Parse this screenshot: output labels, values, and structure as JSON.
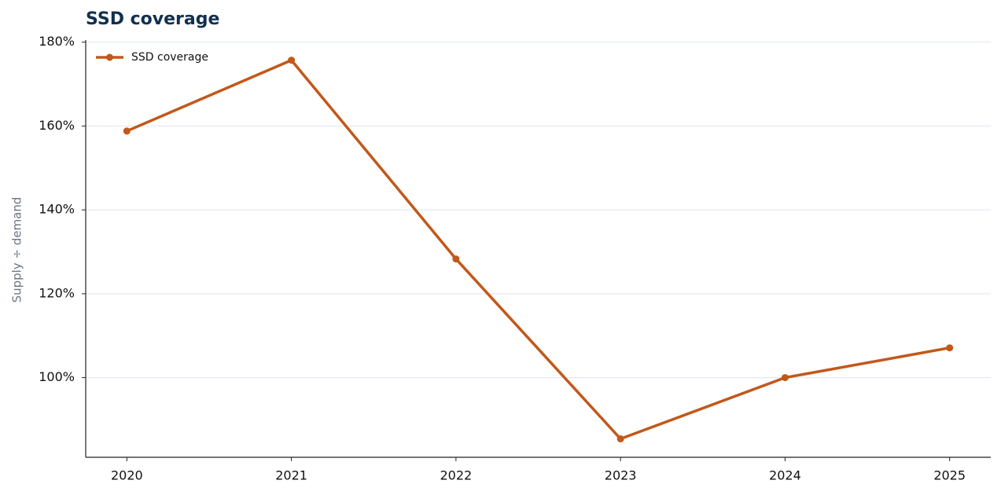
{
  "chart_data": {
    "type": "line",
    "title": "SSD coverage",
    "y_label": "Supply ÷ demand",
    "categories": [
      "2020",
      "2021",
      "2022",
      "2023",
      "2024",
      "2025"
    ],
    "series": [
      {
        "name": "SSD coverage",
        "color": "#c2581a",
        "values": [
          158.8,
          175.7,
          128.3,
          85.4,
          100,
          107.1
        ]
      }
    ],
    "ylim": [
      81,
      180.5
    ],
    "yticks": [
      {
        "value": 100,
        "label": "100%"
      },
      {
        "value": 120,
        "label": "120%"
      },
      {
        "value": 140,
        "label": "140%"
      },
      {
        "value": 160,
        "label": "160%"
      },
      {
        "value": 180,
        "label": "180%"
      }
    ],
    "grid": true,
    "legend": "upper-left"
  }
}
